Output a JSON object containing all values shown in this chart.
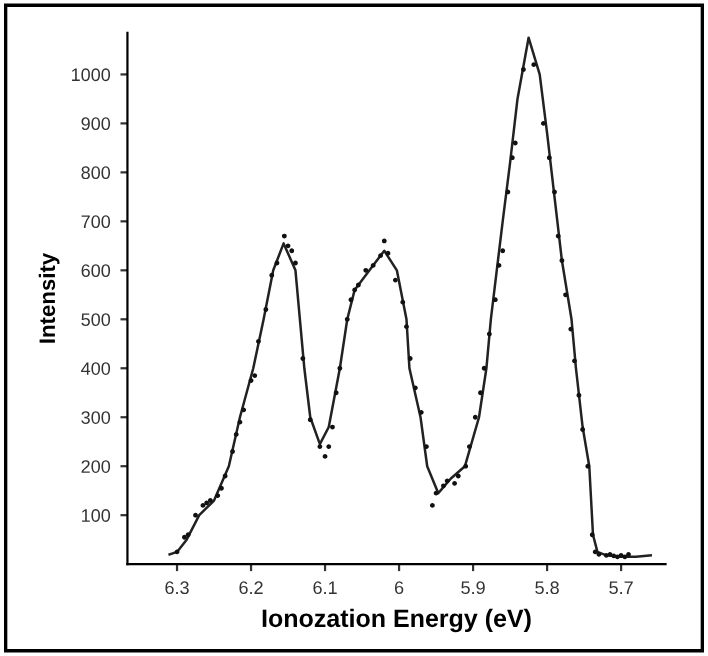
{
  "chart_data": {
    "type": "line",
    "xlabel": "Ionozation Energy (eV)",
    "ylabel": "Intensity",
    "xlim": [
      6.367,
      5.64
    ],
    "xticks": [
      6.3,
      6.2,
      6.1,
      {
        "value": 6.0,
        "label": "6"
      },
      5.9,
      5.8,
      5.7
    ],
    "ylim": [
      0,
      1085
    ],
    "yticks": [
      100,
      200,
      300,
      400,
      500,
      600,
      700,
      800,
      900,
      1000
    ],
    "grid": false,
    "legend": false,
    "series": [
      {
        "color": "#222222",
        "marker": "none",
        "line_style": "solid",
        "x": [
          6.31,
          6.3,
          6.287,
          6.27,
          6.25,
          6.23,
          6.215,
          6.197,
          6.183,
          6.17,
          6.156,
          6.14,
          6.134,
          6.128,
          6.12,
          6.107,
          6.095,
          6.08,
          6.07,
          6.06,
          6.04,
          6.02,
          6.003,
          5.99,
          5.986,
          5.971,
          5.962,
          5.947,
          5.93,
          5.911,
          5.892,
          5.882,
          5.876,
          5.86,
          5.85,
          5.84,
          5.825,
          5.81,
          5.8,
          5.79,
          5.78,
          5.767,
          5.761,
          5.752,
          5.743,
          5.738,
          5.732,
          5.72,
          5.7,
          5.68,
          5.66
        ],
        "values": [
          20,
          25,
          50,
          100,
          130,
          200,
          300,
          400,
          500,
          600,
          655,
          600,
          500,
          400,
          300,
          245,
          280,
          400,
          500,
          560,
          600,
          640,
          600,
          500,
          400,
          300,
          200,
          145,
          175,
          200,
          300,
          400,
          500,
          700,
          820,
          950,
          1075,
          1000,
          880,
          750,
          620,
          500,
          400,
          280,
          200,
          60,
          25,
          18,
          15,
          15,
          18
        ]
      },
      {
        "type": "scatter",
        "color": "#111111",
        "marker": "circle",
        "x": [
          6.3,
          6.29,
          6.285,
          6.275,
          6.265,
          6.26,
          6.255,
          6.245,
          6.24,
          6.235,
          6.225,
          6.22,
          6.215,
          6.21,
          6.2,
          6.195,
          6.19,
          6.18,
          6.172,
          6.165,
          6.155,
          6.15,
          6.145,
          6.14,
          6.13,
          6.12,
          6.107,
          6.1,
          6.095,
          6.09,
          6.085,
          6.08,
          6.07,
          6.065,
          6.06,
          6.055,
          6.045,
          6.035,
          6.025,
          6.02,
          6.015,
          6.005,
          5.995,
          5.99,
          5.985,
          5.978,
          5.97,
          5.963,
          5.955,
          5.95,
          5.94,
          5.935,
          5.925,
          5.92,
          5.91,
          5.905,
          5.897,
          5.89,
          5.885,
          5.878,
          5.87,
          5.865,
          5.86,
          5.853,
          5.847,
          5.843,
          5.832,
          5.818,
          5.805,
          5.797,
          5.79,
          5.785,
          5.78,
          5.775,
          5.768,
          5.763,
          5.757,
          5.752,
          5.745,
          5.739,
          5.735,
          5.73,
          5.72,
          5.715,
          5.71,
          5.705,
          5.7,
          5.695,
          5.69
        ],
        "values": [
          25,
          55,
          60,
          100,
          120,
          125,
          130,
          140,
          155,
          180,
          230,
          265,
          290,
          315,
          375,
          385,
          455,
          520,
          590,
          615,
          670,
          650,
          640,
          615,
          420,
          295,
          240,
          220,
          240,
          280,
          350,
          400,
          500,
          540,
          560,
          570,
          600,
          610,
          630,
          660,
          635,
          580,
          535,
          485,
          420,
          360,
          310,
          240,
          120,
          145,
          160,
          170,
          165,
          180,
          200,
          240,
          300,
          350,
          400,
          470,
          540,
          610,
          640,
          760,
          830,
          860,
          1010,
          1020,
          900,
          830,
          760,
          670,
          620,
          550,
          480,
          415,
          345,
          275,
          200,
          60,
          25,
          20,
          18,
          20,
          17,
          15,
          18,
          15,
          20
        ]
      }
    ]
  }
}
